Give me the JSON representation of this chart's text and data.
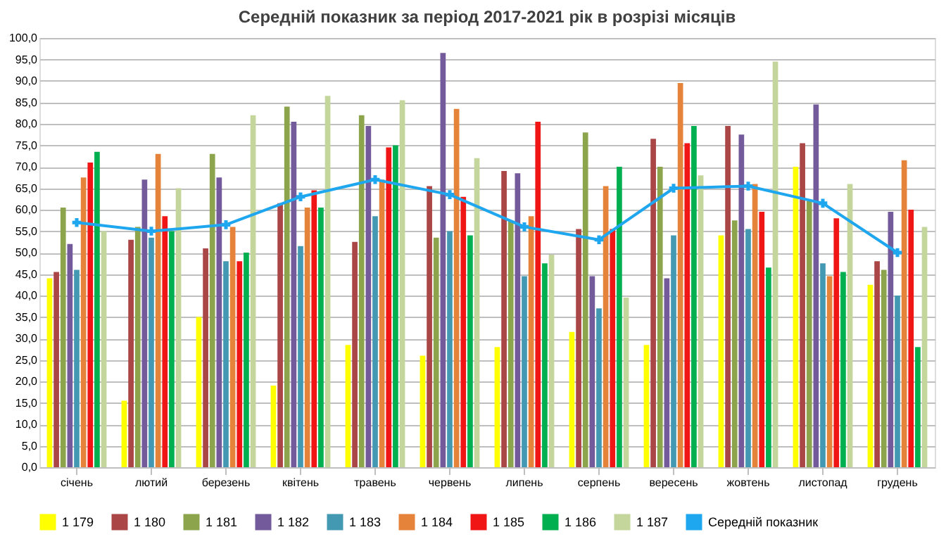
{
  "chart_data": {
    "type": "bar",
    "title": "Середній показник за період 2017-2021 рік в розрізі місяців",
    "categories": [
      "січень",
      "лютий",
      "березень",
      "квітень",
      "травень",
      "червень",
      "липень",
      "серпень",
      "вересень",
      "жовтень",
      "листопад",
      "грудень"
    ],
    "series": [
      {
        "name": "1 179",
        "color": "#ffff00",
        "values": [
          44,
          15.5,
          35,
          19,
          28.5,
          26,
          28,
          31.5,
          28.5,
          54,
          70,
          42.5
        ]
      },
      {
        "name": "1 180",
        "color": "#ab4646",
        "values": [
          45.5,
          53,
          51,
          61.5,
          52.5,
          65.5,
          69,
          55.5,
          76.5,
          79.5,
          75.5,
          48
        ]
      },
      {
        "name": "1 181",
        "color": "#8ca54c",
        "values": [
          60.5,
          56,
          73,
          84,
          82,
          53.5,
          57.5,
          78,
          70,
          57.5,
          62,
          46
        ]
      },
      {
        "name": "1 182",
        "color": "#735a9b",
        "values": [
          52,
          67,
          67.5,
          80.5,
          79.5,
          96.5,
          68.5,
          44.5,
          44,
          77.5,
          84.5,
          59.5
        ]
      },
      {
        "name": "1 183",
        "color": "#4499b2",
        "values": [
          46,
          53.5,
          48,
          51.5,
          58.5,
          55,
          44.5,
          37,
          54,
          55.5,
          47.5,
          40
        ]
      },
      {
        "name": "1 184",
        "color": "#e5833b",
        "values": [
          67.5,
          73,
          56,
          60.5,
          67,
          83.5,
          58.5,
          65.5,
          89.5,
          66,
          44.5,
          71.5
        ]
      },
      {
        "name": "1 185",
        "color": "#f01616",
        "values": [
          71,
          58.5,
          48,
          64.5,
          74.5,
          63,
          80.5,
          55.5,
          75.5,
          59.5,
          58,
          60
        ]
      },
      {
        "name": "1 186",
        "color": "#00b050",
        "values": [
          73.5,
          55,
          50,
          60.5,
          75,
          54,
          47.5,
          70,
          79.5,
          46.5,
          45.5,
          28
        ]
      },
      {
        "name": "1 187",
        "color": "#c4d69c",
        "values": [
          55,
          65,
          82,
          86.5,
          85.5,
          72,
          49.5,
          39.5,
          68,
          94.5,
          66,
          56
        ]
      },
      {
        "name": "Середній показник",
        "type": "line",
        "color": "#1ea6ee",
        "marker": "cross",
        "values": [
          57,
          55,
          56.5,
          63,
          67,
          63.5,
          56,
          53,
          65,
          65.5,
          61.5,
          50
        ]
      }
    ],
    "ylim": [
      0,
      100
    ],
    "yticks": [
      {
        "value": 0,
        "label": "0,0"
      },
      {
        "value": 5,
        "label": "5,0"
      },
      {
        "value": 10,
        "label": "10,0"
      },
      {
        "value": 15,
        "label": "15,0"
      },
      {
        "value": 20,
        "label": "20,0"
      },
      {
        "value": 25,
        "label": "25,0"
      },
      {
        "value": 30,
        "label": "30,0"
      },
      {
        "value": 35,
        "label": "35,0"
      },
      {
        "value": 40,
        "label": "40,0"
      },
      {
        "value": 45,
        "label": "45,0"
      },
      {
        "value": 50,
        "label": "50,0"
      },
      {
        "value": 55,
        "label": "55,0"
      },
      {
        "value": 60,
        "label": "60,0"
      },
      {
        "value": 65,
        "label": "65,0"
      },
      {
        "value": 70,
        "label": "70,0"
      },
      {
        "value": 75,
        "label": "75,0"
      },
      {
        "value": 80,
        "label": "80,0"
      },
      {
        "value": 85,
        "label": "85,0"
      },
      {
        "value": 90,
        "label": "90,0"
      },
      {
        "value": 95,
        "label": "95,0"
      },
      {
        "value": 100,
        "label": "100,0"
      }
    ],
    "grid": "y",
    "legend": "bottom"
  }
}
